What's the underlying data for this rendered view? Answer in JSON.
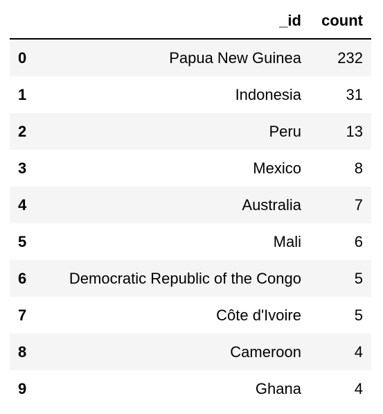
{
  "table": {
    "columns": [
      "",
      "_id",
      "count"
    ],
    "rows": [
      {
        "index": "0",
        "id": "Papua New Guinea",
        "count": "232"
      },
      {
        "index": "1",
        "id": "Indonesia",
        "count": "31"
      },
      {
        "index": "2",
        "id": "Peru",
        "count": "13"
      },
      {
        "index": "3",
        "id": "Mexico",
        "count": "8"
      },
      {
        "index": "4",
        "id": "Australia",
        "count": "7"
      },
      {
        "index": "5",
        "id": "Mali",
        "count": "6"
      },
      {
        "index": "6",
        "id": "Democratic Republic of the Congo",
        "count": "5"
      },
      {
        "index": "7",
        "id": "Côte d'Ivoire",
        "count": "5"
      },
      {
        "index": "8",
        "id": "Cameroon",
        "count": "4"
      },
      {
        "index": "9",
        "id": "Ghana",
        "count": "4"
      }
    ]
  },
  "colors": {
    "stripe": "#f5f5f5",
    "header_rule": "#000000",
    "text": "#000000"
  }
}
